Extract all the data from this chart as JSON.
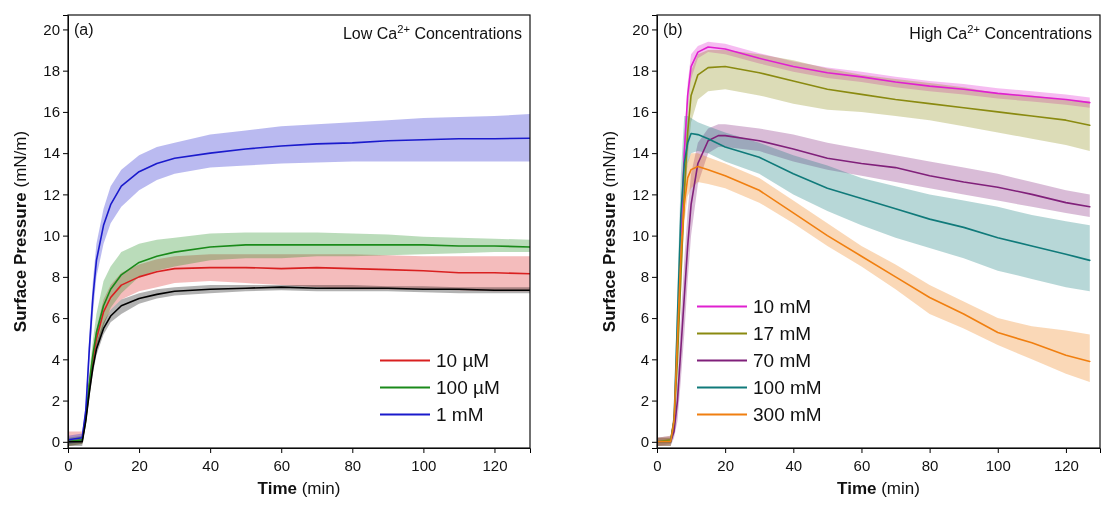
{
  "chart_data": [
    {
      "type": "line",
      "title": "Low Ca$^{2+}$ Concentrations",
      "annotations": [
        "(a)"
      ],
      "xlabel": "Time (min)",
      "ylabel": "Surface Pressure (mN/m)",
      "xlim": [
        0,
        130
      ],
      "ylim": [
        -0.3,
        20.7
      ],
      "xticks": [
        0,
        20,
        40,
        60,
        80,
        100,
        120
      ],
      "yticks": [
        0,
        2,
        4,
        6,
        8,
        10,
        12,
        14,
        16,
        18,
        20
      ],
      "grid": false,
      "legend": "bottom right",
      "x": [
        0,
        4,
        5,
        6,
        7,
        8,
        10,
        12,
        15,
        20,
        25,
        30,
        40,
        50,
        60,
        70,
        80,
        90,
        100,
        110,
        120,
        130
      ],
      "series": [
        {
          "name": "10 µM",
          "color": "#d92020",
          "values": [
            null,
            null,
            null,
            2.7,
            4,
            5,
            6.3,
            7.0,
            7.6,
            8.0,
            8.25,
            8.4,
            8.45,
            8.45,
            8.4,
            8.45,
            8.4,
            8.35,
            8.3,
            8.2,
            8.2,
            8.15
          ],
          "lower": [
            -0.2,
            -0.1,
            0.8,
            2.2,
            3.5,
            4.5,
            5.7,
            6.4,
            6.9,
            7.3,
            7.5,
            7.7,
            7.8,
            7.7,
            7.6,
            7.5,
            7.4,
            7.4,
            7.4,
            7.35,
            7.3,
            7.3
          ],
          "upper": [
            0.5,
            0.5,
            1.6,
            3.2,
            4.5,
            5.5,
            6.9,
            7.6,
            8.2,
            8.6,
            8.85,
            9.0,
            9.1,
            9.1,
            9.1,
            9.1,
            9.1,
            9.05,
            9.0,
            9.0,
            9.0,
            9.0
          ]
        },
        {
          "name": "100 µM",
          "color": "#1a8a1a",
          "values": [
            0,
            0.1,
            1.2,
            2.8,
            4.2,
            5.3,
            6.6,
            7.4,
            8.1,
            8.7,
            9.0,
            9.2,
            9.45,
            9.55,
            9.55,
            9.55,
            9.55,
            9.55,
            9.55,
            9.5,
            9.5,
            9.45
          ],
          "lower": [
            -0.2,
            -0.1,
            0.8,
            2.2,
            3.5,
            4.4,
            5.6,
            6.5,
            7.2,
            8.0,
            8.3,
            8.5,
            8.8,
            8.9,
            8.9,
            9.0,
            9.0,
            9.05,
            9.1,
            9.15,
            9.2,
            9.2
          ],
          "upper": [
            0.2,
            0.3,
            1.6,
            3.4,
            4.9,
            6.2,
            7.8,
            8.5,
            9.2,
            9.6,
            9.8,
            9.9,
            10.1,
            10.15,
            10.15,
            10.15,
            10.1,
            10.05,
            9.95,
            9.9,
            9.85,
            9.8
          ]
        },
        {
          "name": "1 mM",
          "color": "#1a1acc",
          "values": [
            0.1,
            0.2,
            1.5,
            4.5,
            7,
            8.8,
            10.5,
            11.5,
            12.4,
            13.1,
            13.5,
            13.75,
            14.0,
            14.2,
            14.35,
            14.45,
            14.5,
            14.6,
            14.65,
            14.7,
            14.7,
            14.72
          ],
          "lower": [
            -0.1,
            0,
            1.1,
            3.8,
            6.2,
            8.0,
            9.6,
            10.6,
            11.4,
            12.2,
            12.7,
            13.0,
            13.3,
            13.4,
            13.5,
            13.55,
            13.6,
            13.6,
            13.6,
            13.6,
            13.6,
            13.6
          ],
          "upper": [
            0.3,
            0.4,
            1.9,
            5.2,
            7.8,
            9.6,
            11.3,
            12.4,
            13.2,
            13.9,
            14.3,
            14.5,
            14.9,
            15.1,
            15.3,
            15.4,
            15.5,
            15.6,
            15.7,
            15.75,
            15.8,
            15.9
          ]
        },
        {
          "color": "#000000",
          "values": [
            0,
            0,
            1,
            2.4,
            3.6,
            4.5,
            5.5,
            6.1,
            6.6,
            6.95,
            7.15,
            7.3,
            7.4,
            7.45,
            7.5,
            7.45,
            7.45,
            7.45,
            7.4,
            7.4,
            7.35,
            7.35
          ],
          "lower": [
            -0.2,
            -0.2,
            0.8,
            2.1,
            3.3,
            4.2,
            5.2,
            5.8,
            6.2,
            6.7,
            6.95,
            7.1,
            7.2,
            7.3,
            7.35,
            7.3,
            7.3,
            7.3,
            7.25,
            7.2,
            7.2,
            7.2
          ],
          "upper": [
            0.1,
            0.1,
            1.2,
            2.7,
            3.9,
            4.8,
            5.8,
            6.4,
            6.9,
            7.2,
            7.4,
            7.5,
            7.6,
            7.6,
            7.6,
            7.6,
            7.6,
            7.55,
            7.55,
            7.5,
            7.5,
            7.5
          ]
        }
      ]
    },
    {
      "type": "line",
      "title": "High Ca$^{2+}$ Concentrations",
      "annotations": [
        "(b)"
      ],
      "xlabel": "Time (min)",
      "ylabel": "Surface Pressure (mN/m)",
      "xlim": [
        0,
        130
      ],
      "ylim": [
        -0.3,
        20.7
      ],
      "xticks": [
        0,
        20,
        40,
        60,
        80,
        100,
        120
      ],
      "yticks": [
        0,
        2,
        4,
        6,
        8,
        10,
        12,
        14,
        16,
        18,
        20
      ],
      "grid": false,
      "legend": "bottom left",
      "series": [
        {
          "name": "10 mM",
          "color": "#e020d0",
          "x": [
            0,
            4,
            5,
            6,
            7,
            8,
            9,
            10,
            12,
            15,
            20,
            30,
            40,
            50,
            60,
            70,
            80,
            90,
            100,
            110,
            120,
            127
          ],
          "values": [
            null,
            null,
            null,
            null,
            10,
            14,
            16.8,
            18.2,
            18.9,
            19.15,
            19.05,
            18.6,
            18.2,
            17.9,
            17.7,
            17.45,
            17.25,
            17.1,
            16.9,
            16.75,
            16.6,
            16.45
          ],
          "lower": [
            -0.2,
            -0.1,
            0.6,
            4.4,
            9.3,
            13.3,
            16.2,
            17.6,
            18.6,
            18.9,
            18.8,
            18.35,
            17.95,
            17.65,
            17.45,
            17.2,
            17.0,
            16.85,
            16.65,
            16.5,
            16.35,
            16.2
          ],
          "upper": [
            0.2,
            0.3,
            1.4,
            5.6,
            10.7,
            14.7,
            17.4,
            18.8,
            19.2,
            19.4,
            19.3,
            18.85,
            18.45,
            18.15,
            17.95,
            17.7,
            17.5,
            17.35,
            17.15,
            17.0,
            16.85,
            16.7
          ]
        },
        {
          "name": "17 mM",
          "color": "#8a8a10",
          "x": [
            0,
            4,
            5,
            6,
            7,
            8,
            9,
            10,
            12,
            15,
            20,
            30,
            40,
            50,
            60,
            70,
            80,
            90,
            100,
            110,
            120,
            127
          ],
          "values": [
            0,
            0.1,
            1,
            4,
            8,
            12,
            15,
            16.8,
            17.8,
            18.15,
            18.2,
            17.9,
            17.5,
            17.1,
            16.85,
            16.6,
            16.4,
            16.2,
            16.0,
            15.8,
            15.6,
            15.35
          ],
          "lower": [
            -0.2,
            -0.1,
            0.6,
            3.3,
            7,
            10.8,
            13.8,
            15.5,
            16.6,
            17.0,
            17.1,
            16.8,
            16.4,
            16.1,
            16.0,
            15.8,
            15.6,
            15.3,
            15.0,
            14.7,
            14.4,
            14.1
          ],
          "upper": [
            0.2,
            0.3,
            1.4,
            4.7,
            9,
            13.2,
            16.2,
            18.0,
            18.8,
            19.0,
            19.0,
            18.8,
            18.5,
            18.1,
            17.8,
            17.6,
            17.4,
            17.2,
            16.9,
            16.8,
            16.6,
            16.5
          ]
        },
        {
          "name": "70 mM",
          "color": "#80207a",
          "x": [
            0,
            4,
            5,
            6,
            7,
            8,
            9,
            10,
            12,
            15,
            18,
            20,
            30,
            40,
            50,
            60,
            70,
            80,
            90,
            100,
            110,
            120,
            127
          ],
          "values": [
            0,
            0,
            0.5,
            2,
            4.5,
            7,
            9.5,
            11.5,
            13.5,
            14.6,
            14.85,
            14.85,
            14.6,
            14.2,
            13.75,
            13.5,
            13.3,
            12.9,
            12.6,
            12.35,
            12.0,
            11.6,
            11.4
          ],
          "lower": [
            -0.2,
            -0.2,
            0.2,
            1.0,
            3,
            5.2,
            7.8,
            10,
            12.5,
            14.0,
            14.3,
            14.3,
            14.1,
            13.6,
            13.2,
            12.9,
            12.6,
            12.3,
            12.0,
            11.7,
            11.4,
            11.1,
            10.9
          ],
          "upper": [
            0.2,
            0.2,
            0.8,
            3.0,
            6,
            8.8,
            11.2,
            13,
            14.5,
            15.2,
            15.4,
            15.4,
            15.2,
            14.9,
            14.5,
            14.2,
            13.9,
            13.6,
            13.3,
            13.0,
            12.6,
            12.2,
            12.0
          ]
        },
        {
          "name": "100 mM",
          "color": "#107a7a",
          "x": [
            0,
            4,
            5,
            6,
            7,
            8,
            9,
            10,
            12,
            15,
            20,
            30,
            40,
            50,
            60,
            70,
            80,
            90,
            100,
            110,
            120,
            127
          ],
          "values": [
            0,
            0,
            1,
            6,
            11,
            13.5,
            14.5,
            14.95,
            14.9,
            14.7,
            14.3,
            13.8,
            13.0,
            12.3,
            11.8,
            11.3,
            10.8,
            10.4,
            9.9,
            9.5,
            9.1,
            8.8
          ],
          "lower": [
            -0.2,
            -0.2,
            0.5,
            4.5,
            9,
            12,
            13.5,
            14,
            14.1,
            14.0,
            13.6,
            13.0,
            12.0,
            11.2,
            10.5,
            9.9,
            9.4,
            8.9,
            8.3,
            7.9,
            7.5,
            7.3
          ],
          "upper": [
            0.2,
            0.2,
            1.5,
            7.5,
            13,
            15.8,
            15.8,
            15.7,
            15.5,
            15.3,
            15.0,
            14.5,
            13.9,
            13.4,
            12.8,
            12.4,
            12.0,
            11.7,
            11.4,
            11.0,
            10.7,
            10.5
          ]
        },
        {
          "name": "300 mM",
          "color": "#f07f10",
          "x": [
            0,
            4,
            5,
            6,
            7,
            8,
            9,
            10,
            12,
            15,
            20,
            30,
            40,
            50,
            60,
            70,
            80,
            90,
            100,
            110,
            120,
            127
          ],
          "values": [
            0,
            0,
            1,
            5,
            9,
            11.5,
            12.8,
            13.2,
            13.35,
            13.2,
            12.9,
            12.2,
            11.1,
            10.0,
            9.0,
            8.0,
            7.0,
            6.2,
            5.3,
            4.8,
            4.2,
            3.9
          ],
          "lower": [
            -0.2,
            -0.2,
            0.6,
            4.2,
            8,
            10.6,
            11.9,
            12.3,
            12.6,
            12.5,
            12.3,
            11.6,
            10.6,
            9.5,
            8.5,
            7.4,
            6.2,
            5.5,
            4.7,
            4.0,
            3.3,
            2.9
          ],
          "upper": [
            0.2,
            0.2,
            1.4,
            5.8,
            10,
            12.4,
            13.6,
            14.0,
            14.0,
            13.8,
            13.5,
            12.8,
            11.7,
            10.6,
            9.5,
            8.6,
            7.6,
            6.8,
            6.0,
            5.6,
            5.4,
            5.2
          ]
        }
      ]
    }
  ]
}
